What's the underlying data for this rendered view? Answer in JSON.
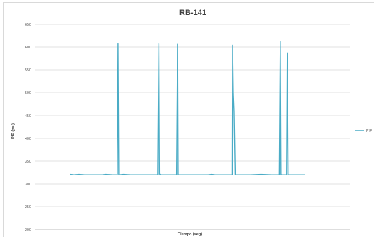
{
  "chart_data": {
    "type": "line",
    "title": "RB-141",
    "xlabel": "Tiempo (seg)",
    "ylabel": "PIP (psi)",
    "ylim": [
      200,
      650
    ],
    "yticks": [
      200,
      250,
      300,
      350,
      400,
      450,
      500,
      550,
      600,
      650
    ],
    "grid": "horizontal",
    "legend": "right",
    "colors": {
      "series": "#4bacc6",
      "grid": "#d9d9d9",
      "axis": "#a6a6a6"
    },
    "xlim": [
      0,
      335
    ],
    "series": [
      {
        "name": "PIP",
        "x": [
          0,
          5,
          12,
          20,
          30,
          45,
          50,
          60,
          66.5,
          67.5,
          68.5,
          69.5,
          75,
          85,
          100,
          110,
          124,
          125.5,
          126.5,
          128,
          140,
          150,
          151.5,
          152.3,
          153.5,
          160,
          175,
          195,
          200,
          205,
          215,
          225,
          229.5,
          230,
          231,
          232,
          233.5,
          240,
          255,
          270,
          285,
          296,
          297.5,
          298.5,
          299.5,
          305,
          306.5,
          307.5,
          308.5,
          320,
          333
        ],
        "values": [
          321,
          320,
          321,
          320,
          320,
          320,
          321,
          320,
          320,
          607,
          320,
          320,
          321,
          320,
          320,
          320,
          320,
          607,
          322,
          320,
          320,
          320,
          606,
          320,
          320,
          320,
          320,
          320,
          321,
          320,
          320,
          320,
          320,
          604,
          500,
          460,
          320,
          320,
          320,
          321,
          320,
          320,
          612,
          321,
          320,
          320,
          320,
          587,
          320,
          320,
          320
        ]
      }
    ]
  }
}
